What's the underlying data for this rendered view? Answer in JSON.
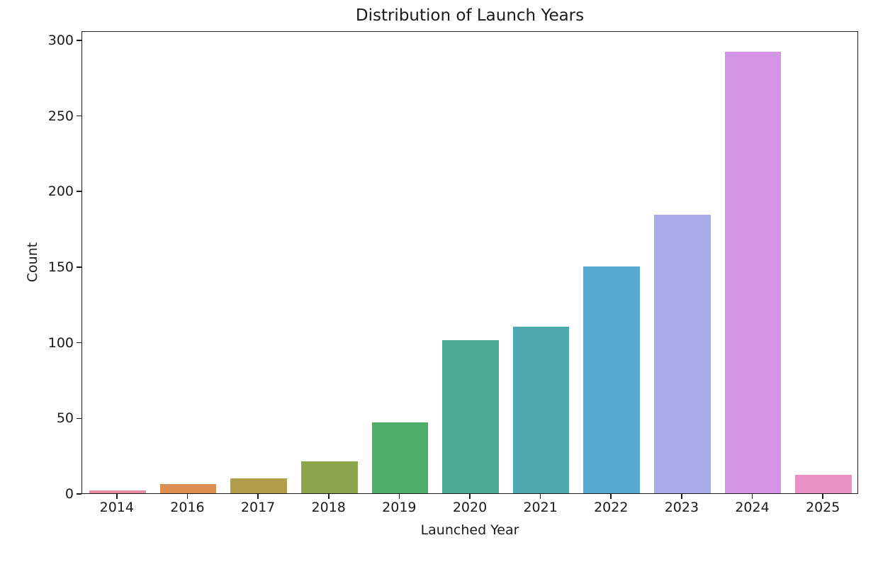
{
  "chart_data": {
    "type": "bar",
    "title": "Distribution of Launch Years",
    "xlabel": "Launched Year",
    "ylabel": "Count",
    "categories": [
      "2014",
      "2016",
      "2017",
      "2018",
      "2019",
      "2020",
      "2021",
      "2022",
      "2023",
      "2024",
      "2025"
    ],
    "values": [
      2,
      6,
      10,
      21,
      47,
      101,
      110,
      150,
      184,
      292,
      12
    ],
    "bar_colors": [
      "#e78ba0",
      "#dc8f52",
      "#b19d4c",
      "#8ca54c",
      "#4ead66",
      "#4bab97",
      "#4ea9b2",
      "#56aad2",
      "#a9ace9",
      "#d595e5",
      "#e891c5"
    ],
    "yticks": [
      0,
      50,
      100,
      150,
      200,
      250,
      300
    ],
    "ylim": [
      0,
      306
    ],
    "grid": false,
    "legend": "none",
    "bar_relative_width": 0.8,
    "frame_color": "#1a1a1a",
    "background_color": "#ffffff"
  }
}
